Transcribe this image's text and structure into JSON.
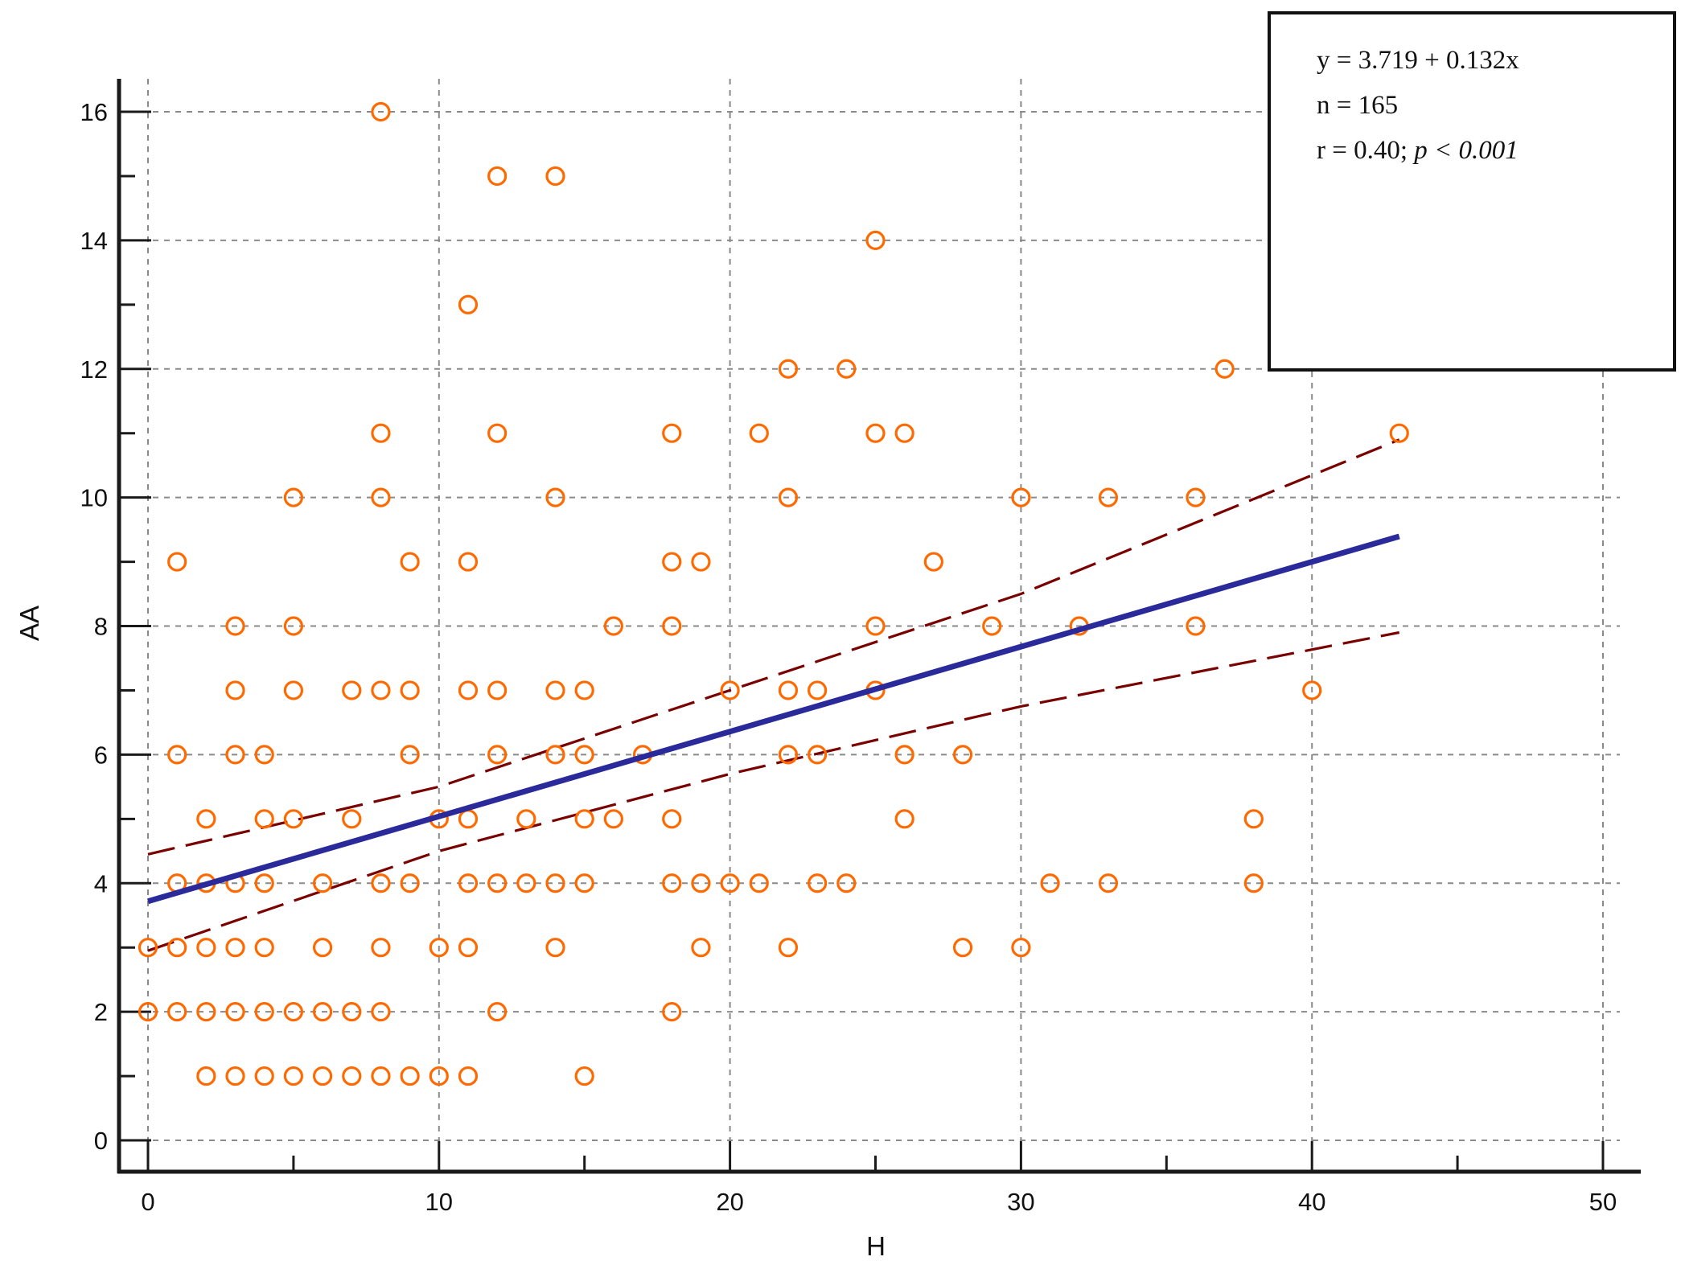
{
  "chart_data": {
    "type": "scatter",
    "xlabel": "H",
    "ylabel": "AA",
    "xlim": [
      0,
      50
    ],
    "ylim": [
      0,
      16
    ],
    "xticks": [
      0,
      10,
      20,
      30,
      40,
      50
    ],
    "yticks": [
      0,
      2,
      4,
      6,
      8,
      10,
      12,
      14,
      16
    ],
    "x_minor_step": 5,
    "y_minor_step": 1,
    "grid": true,
    "colors": {
      "points": "#ff6a00",
      "regression": "#2b2a9a",
      "confidence": "#7a0000",
      "grid": "#8a8a8a",
      "axis": "#1a1a1a"
    },
    "points": [
      [
        0,
        2
      ],
      [
        0,
        3
      ],
      [
        1,
        2
      ],
      [
        1,
        3
      ],
      [
        1,
        4
      ],
      [
        1,
        6
      ],
      [
        1,
        9
      ],
      [
        2,
        1
      ],
      [
        2,
        2
      ],
      [
        2,
        3
      ],
      [
        2,
        4
      ],
      [
        2,
        5
      ],
      [
        3,
        1
      ],
      [
        3,
        2
      ],
      [
        3,
        3
      ],
      [
        3,
        4
      ],
      [
        3,
        6
      ],
      [
        3,
        7
      ],
      [
        3,
        8
      ],
      [
        4,
        1
      ],
      [
        4,
        2
      ],
      [
        4,
        3
      ],
      [
        4,
        4
      ],
      [
        4,
        5
      ],
      [
        4,
        6
      ],
      [
        5,
        1
      ],
      [
        5,
        2
      ],
      [
        5,
        5
      ],
      [
        5,
        7
      ],
      [
        5,
        8
      ],
      [
        5,
        10
      ],
      [
        6,
        1
      ],
      [
        6,
        2
      ],
      [
        6,
        3
      ],
      [
        6,
        4
      ],
      [
        7,
        1
      ],
      [
        7,
        2
      ],
      [
        7,
        5
      ],
      [
        7,
        7
      ],
      [
        8,
        1
      ],
      [
        8,
        2
      ],
      [
        8,
        3
      ],
      [
        8,
        4
      ],
      [
        8,
        7
      ],
      [
        8,
        10
      ],
      [
        8,
        11
      ],
      [
        8,
        16
      ],
      [
        9,
        1
      ],
      [
        9,
        4
      ],
      [
        9,
        6
      ],
      [
        9,
        7
      ],
      [
        9,
        9
      ],
      [
        10,
        1
      ],
      [
        10,
        3
      ],
      [
        10,
        5
      ],
      [
        11,
        1
      ],
      [
        11,
        3
      ],
      [
        11,
        4
      ],
      [
        11,
        5
      ],
      [
        11,
        7
      ],
      [
        11,
        9
      ],
      [
        11,
        13
      ],
      [
        12,
        2
      ],
      [
        12,
        4
      ],
      [
        12,
        6
      ],
      [
        12,
        7
      ],
      [
        12,
        11
      ],
      [
        12,
        15
      ],
      [
        13,
        4
      ],
      [
        13,
        5
      ],
      [
        14,
        3
      ],
      [
        14,
        4
      ],
      [
        14,
        6
      ],
      [
        14,
        7
      ],
      [
        14,
        10
      ],
      [
        14,
        15
      ],
      [
        15,
        1
      ],
      [
        15,
        4
      ],
      [
        15,
        5
      ],
      [
        15,
        6
      ],
      [
        15,
        7
      ],
      [
        16,
        5
      ],
      [
        16,
        8
      ],
      [
        17,
        6
      ],
      [
        18,
        2
      ],
      [
        18,
        4
      ],
      [
        18,
        5
      ],
      [
        18,
        8
      ],
      [
        18,
        9
      ],
      [
        18,
        11
      ],
      [
        19,
        3
      ],
      [
        19,
        4
      ],
      [
        19,
        9
      ],
      [
        20,
        4
      ],
      [
        20,
        7
      ],
      [
        21,
        4
      ],
      [
        21,
        11
      ],
      [
        22,
        3
      ],
      [
        22,
        6
      ],
      [
        22,
        7
      ],
      [
        22,
        10
      ],
      [
        22,
        12
      ],
      [
        23,
        4
      ],
      [
        23,
        6
      ],
      [
        23,
        7
      ],
      [
        24,
        4
      ],
      [
        24,
        12
      ],
      [
        25,
        7
      ],
      [
        25,
        8
      ],
      [
        25,
        11
      ],
      [
        25,
        14
      ],
      [
        26,
        5
      ],
      [
        26,
        6
      ],
      [
        26,
        11
      ],
      [
        27,
        9
      ],
      [
        28,
        3
      ],
      [
        28,
        6
      ],
      [
        29,
        8
      ],
      [
        30,
        3
      ],
      [
        30,
        10
      ],
      [
        31,
        4
      ],
      [
        32,
        8
      ],
      [
        33,
        4
      ],
      [
        33,
        10
      ],
      [
        36,
        8
      ],
      [
        36,
        10
      ],
      [
        37,
        12
      ],
      [
        38,
        4
      ],
      [
        38,
        5
      ],
      [
        40,
        7
      ],
      [
        43,
        11
      ]
    ],
    "regression": {
      "intercept": 3.719,
      "slope": 0.132,
      "x_range": [
        0,
        43
      ]
    },
    "confidence_bands": {
      "upper": [
        [
          0,
          4.45
        ],
        [
          10,
          5.5
        ],
        [
          20,
          7.0
        ],
        [
          30,
          8.5
        ],
        [
          43,
          10.9
        ]
      ],
      "lower": [
        [
          0,
          2.95
        ],
        [
          10,
          4.5
        ],
        [
          20,
          5.7
        ],
        [
          30,
          6.75
        ],
        [
          43,
          7.9
        ]
      ]
    },
    "info_box": {
      "equation": "y = 3.719 + 0.132x",
      "n": "n = 165",
      "r_text": "r = 0.40; ",
      "p_text": "p < 0.001"
    }
  }
}
